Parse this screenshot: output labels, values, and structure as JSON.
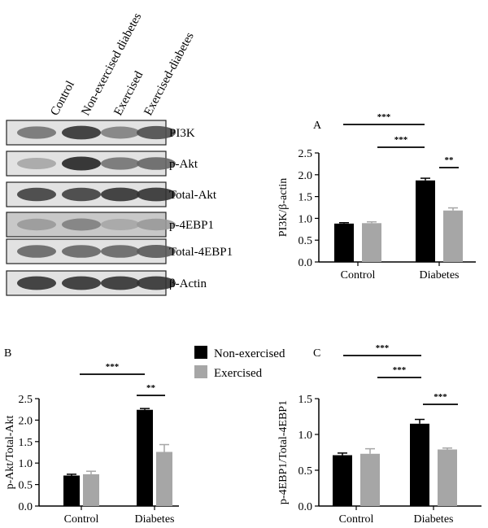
{
  "blot": {
    "lanes": [
      "Control",
      "Non-exercised diabetes",
      "Exercised",
      "Exercised-diabetes"
    ],
    "rows": [
      "PI3K",
      "p-Akt",
      "Total-Akt",
      "p-4EBP1",
      "Total-4EBP1",
      "β-Actin"
    ]
  },
  "legend": {
    "items": [
      {
        "label": "Non-exercised",
        "color": "#000000"
      },
      {
        "label": "Exercised",
        "color": "#a6a6a6"
      }
    ]
  },
  "chart_data": [
    {
      "type": "bar",
      "panel": "A",
      "categories": [
        "Control",
        "Diabetes"
      ],
      "series": [
        {
          "name": "Non-exercised",
          "values": [
            0.88,
            1.87
          ],
          "errors": [
            0.02,
            0.05
          ],
          "color": "#000000"
        },
        {
          "name": "Exercised",
          "values": [
            0.89,
            1.18
          ],
          "errors": [
            0.03,
            0.06
          ],
          "color": "#a6a6a6"
        }
      ],
      "ylabel": "PI3K/β-actin",
      "ylim": [
        0,
        2.5
      ],
      "yticks": [
        "0.0",
        "0.5",
        "1.0",
        "1.5",
        "2.0",
        "2.5"
      ],
      "significance": [
        "***",
        "***",
        "**"
      ]
    },
    {
      "type": "bar",
      "panel": "B",
      "categories": [
        "Control",
        "Diabetes"
      ],
      "series": [
        {
          "name": "Non-exercised",
          "values": [
            0.71,
            2.24
          ],
          "errors": [
            0.03,
            0.03
          ],
          "color": "#000000"
        },
        {
          "name": "Exercised",
          "values": [
            0.74,
            1.26
          ],
          "errors": [
            0.07,
            0.17
          ],
          "color": "#a6a6a6"
        }
      ],
      "ylabel": "p-Akt/Total-Akt",
      "ylim": [
        0,
        2.5
      ],
      "yticks": [
        "0.0",
        "0.5",
        "1.0",
        "1.5",
        "2.0",
        "2.5"
      ],
      "significance": [
        "***",
        "**"
      ]
    },
    {
      "type": "bar",
      "panel": "C",
      "categories": [
        "Control",
        "Diabetes"
      ],
      "series": [
        {
          "name": "Non-exercised",
          "values": [
            0.71,
            1.15
          ],
          "errors": [
            0.03,
            0.06
          ],
          "color": "#000000"
        },
        {
          "name": "Exercised",
          "values": [
            0.73,
            0.79
          ],
          "errors": [
            0.07,
            0.02
          ],
          "color": "#a6a6a6"
        }
      ],
      "ylabel": "p-4EBP1/Total-4EBP1",
      "ylim": [
        0,
        1.5
      ],
      "yticks": [
        "0.0",
        "0.5",
        "1.0",
        "1.5"
      ],
      "significance": [
        "***",
        "***",
        "***"
      ]
    }
  ]
}
